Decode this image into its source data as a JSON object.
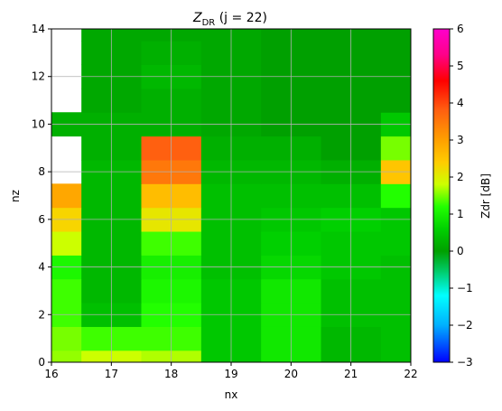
{
  "chart_data": {
    "type": "heatmap",
    "title_main": "Z",
    "title_sub": "DR",
    "title_rest": " (j = 22)",
    "xlabel": "nx",
    "ylabel": "nz",
    "xlim": [
      16,
      22
    ],
    "ylim": [
      0,
      14
    ],
    "x_ticks": [
      "16",
      "17",
      "18",
      "19",
      "20",
      "21",
      "22"
    ],
    "y_ticks": [
      "0",
      "2",
      "4",
      "6",
      "8",
      "10",
      "12",
      "14"
    ],
    "grid": true,
    "x_edges": [
      16,
      16.5,
      17.5,
      18.5,
      19.5,
      20.5,
      21.5,
      22
    ],
    "y_edges": [
      0,
      0.5,
      1.5,
      2.5,
      3.5,
      4.5,
      5.5,
      6.5,
      7.5,
      8.5,
      9.5,
      10.5,
      11.5,
      12.5,
      13.5,
      14
    ],
    "z": [
      [
        1.6,
        1.8,
        1.7,
        0.5,
        0.9,
        0.3,
        0.4
      ],
      [
        1.5,
        1.3,
        1.3,
        0.5,
        0.9,
        0.3,
        0.4
      ],
      [
        1.3,
        0.4,
        1.2,
        0.5,
        0.9,
        0.4,
        0.4
      ],
      [
        1.3,
        0.3,
        1.1,
        0.5,
        0.9,
        0.4,
        0.4
      ],
      [
        1.1,
        0.3,
        1.0,
        0.4,
        0.7,
        0.5,
        0.4
      ],
      [
        1.8,
        0.3,
        1.3,
        0.4,
        0.6,
        0.5,
        0.5
      ],
      [
        2.3,
        0.3,
        2.1,
        0.4,
        0.5,
        0.6,
        0.5
      ],
      [
        2.9,
        0.3,
        2.6,
        0.4,
        0.4,
        0.4,
        1.2
      ],
      [
        null,
        0.3,
        3.5,
        0.3,
        0.3,
        0.2,
        2.5
      ],
      [
        null,
        0.2,
        3.8,
        0.2,
        0.2,
        0.0,
        1.5
      ],
      [
        0.2,
        0.2,
        0.2,
        0.1,
        0.0,
        0.0,
        0.5
      ],
      [
        null,
        0.1,
        0.2,
        0.1,
        0.0,
        0.0,
        0.0
      ],
      [
        null,
        0.1,
        0.3,
        0.1,
        0.0,
        0.0,
        0.0
      ],
      [
        null,
        0.1,
        0.2,
        0.1,
        0.0,
        0.0,
        0.0
      ],
      [
        null,
        0.1,
        0.1,
        0.1,
        0.0,
        0.0,
        0.0
      ]
    ],
    "colorbar": {
      "label": "Zdr [dB]",
      "vmin": -3,
      "vmax": 6,
      "ticks": [
        "6",
        "5",
        "4",
        "3",
        "2",
        "1",
        "0",
        "−1",
        "−2",
        "−3"
      ],
      "colormap": [
        [
          -3.0,
          "#0000ff"
        ],
        [
          -2.0,
          "#00b0ff"
        ],
        [
          -1.2,
          "#00ffff"
        ],
        [
          -0.5,
          "#00c860"
        ],
        [
          0.0,
          "#00a000"
        ],
        [
          0.6,
          "#00d000"
        ],
        [
          1.2,
          "#22ff00"
        ],
        [
          1.8,
          "#ccff00"
        ],
        [
          2.4,
          "#ffcc00"
        ],
        [
          3.0,
          "#ffa000"
        ],
        [
          3.8,
          "#ff6010"
        ],
        [
          4.6,
          "#ff0000"
        ],
        [
          5.3,
          "#ff0088"
        ],
        [
          6.0,
          "#ff00cc"
        ]
      ]
    }
  }
}
